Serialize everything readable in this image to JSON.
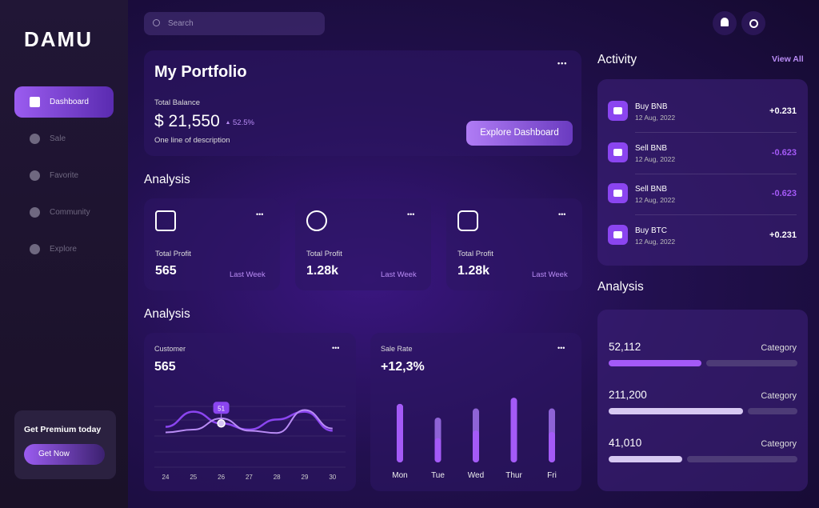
{
  "brand": "DAMU",
  "search": "Search",
  "nav": [
    "Dashboard",
    "Sale",
    "Favorite",
    "Community",
    "Explore"
  ],
  "premium": {
    "title": "Get Premium today",
    "button": "Get Now"
  },
  "portfolio": {
    "title": "My Portfolio",
    "balance_label": "Total Balance",
    "balance": "$ 21,550",
    "change": "52.5%",
    "description": "One line of description",
    "button": "Explore Dashboard"
  },
  "analysis_cards": {
    "title": "Analysis",
    "cards": [
      {
        "label": "Total Profit",
        "value": "565",
        "link": "Last Week"
      },
      {
        "label": "Total Profit",
        "value": "1.28k",
        "link": "Last Week"
      },
      {
        "label": "Total Profit",
        "value": "1.28k",
        "link": "Last Week"
      }
    ]
  },
  "charts_section": {
    "title": "Analysis"
  },
  "customer_chart": {
    "label": "Customer",
    "value": "565",
    "x": [
      "24",
      "25",
      "26",
      "27",
      "28",
      "29",
      "30"
    ],
    "ylim": [
      0,
      100
    ],
    "series": [
      {
        "color": "#8b45f0",
        "values": [
          45,
          72,
          51,
          40,
          58,
          72,
          38
        ]
      },
      {
        "color": "#b98cf5",
        "values": [
          35,
          40,
          60,
          38,
          34,
          75,
          42
        ]
      }
    ],
    "tooltip": {
      "index": 2,
      "label": "51"
    }
  },
  "sale_chart": {
    "label": "Sale Rate",
    "value": "+12,3%",
    "ylim": [
      0,
      100
    ],
    "bars": [
      {
        "day": "Mon",
        "total": 77,
        "filled": 77
      },
      {
        "day": "Tue",
        "total": 59,
        "filled": 32
      },
      {
        "day": "Wed",
        "total": 71,
        "filled": 42
      },
      {
        "day": "Thur",
        "total": 85,
        "filled": 85
      },
      {
        "day": "Fri",
        "total": 71,
        "filled": 40
      }
    ]
  },
  "activity": {
    "title": "Activity",
    "link": "View All",
    "items": [
      {
        "name": "Buy BNB",
        "date": "12 Aug, 2022",
        "amount": "+0.231"
      },
      {
        "name": "Sell BNB",
        "date": "12 Aug, 2022",
        "amount": "-0.623"
      },
      {
        "name": "Sell BNB",
        "date": "12 Aug, 2022",
        "amount": "-0.623"
      },
      {
        "name": "Buy BTC",
        "date": "12 Aug, 2022",
        "amount": "+0.231"
      }
    ]
  },
  "side_analysis": {
    "title": "Analysis",
    "items": [
      {
        "value": "52,112",
        "label": "Category",
        "progress": 49
      },
      {
        "value": "211,200",
        "label": "Category",
        "progress": 71
      },
      {
        "value": "41,010",
        "label": "Category",
        "progress": 39
      }
    ]
  }
}
